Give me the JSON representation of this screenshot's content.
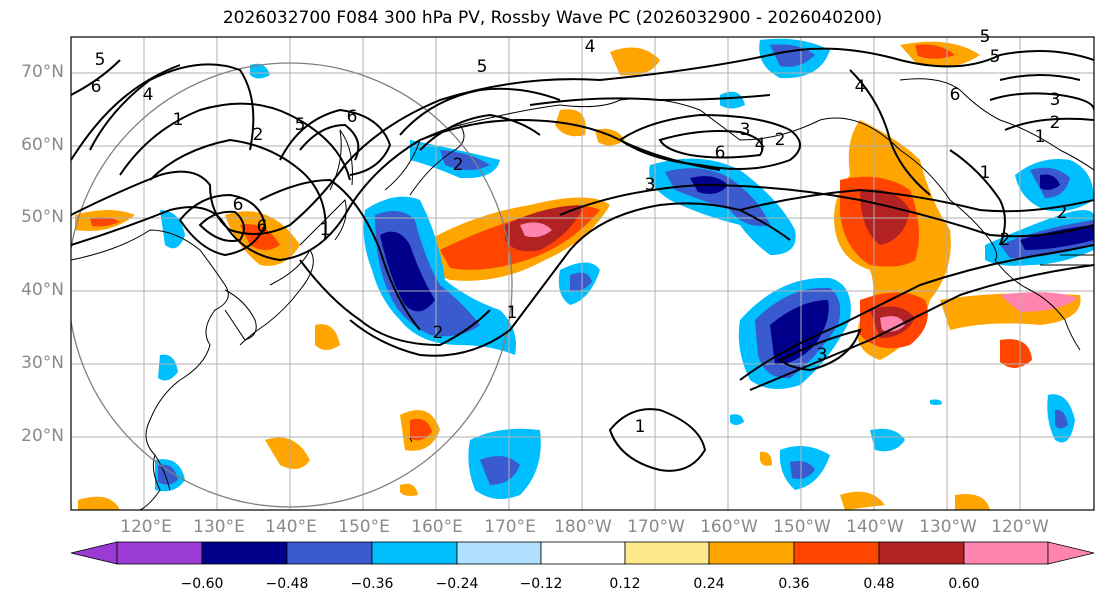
{
  "title": "2026032700 F084 300 hPa PV, Rossby Wave PC (2026032900 - 2026040200)",
  "lat_labels": [
    "70°N",
    "60°N",
    "50°N",
    "40°N",
    "30°N",
    "20°N"
  ],
  "lon_labels": [
    "120°E",
    "130°E",
    "140°E",
    "150°E",
    "160°E",
    "170°E",
    "180°W",
    "170°W",
    "160°W",
    "150°W",
    "140°W",
    "130°W",
    "120°W"
  ],
  "colorbar": {
    "ticks": [
      "−0.60",
      "−0.48",
      "−0.36",
      "−0.24",
      "−0.12",
      "0.12",
      "0.24",
      "0.36",
      "0.48",
      "0.60"
    ],
    "colors": [
      "#9b3bd6",
      "#00008b",
      "#3a5bd0",
      "#00bfff",
      "#b0e0ff",
      "#ffffff",
      "#ffe98a",
      "#ffa500",
      "#ff4500",
      "#b22222",
      "#ff85b0"
    ]
  },
  "contour_labels": [
    "5",
    "5",
    "4",
    "4",
    "4",
    "6",
    "6",
    "6",
    "6",
    "2",
    "2",
    "1",
    "1",
    "1",
    "3",
    "3",
    "3",
    "2",
    "1",
    "5",
    "6",
    "3",
    "2",
    "1",
    "2",
    "2",
    "4",
    "5",
    "5",
    "6",
    "2",
    "1"
  ]
}
